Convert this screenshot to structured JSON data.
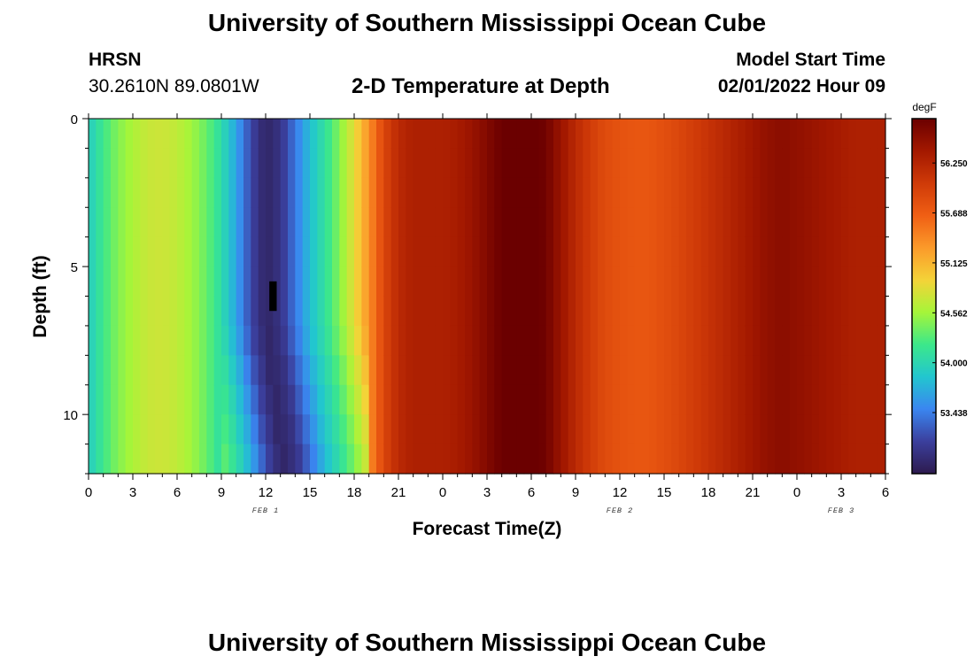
{
  "page": {
    "title": "University of Southern Mississippi Ocean Cube",
    "footer_title": "University of Southern Mississippi Ocean Cube",
    "station": "HRSN",
    "coords": "30.2610N  89.0801W",
    "model_label": "Model Start Time",
    "model_time": "02/01/2022 Hour 09"
  },
  "chart_data": {
    "type": "heatmap",
    "title": "2-D Temperature at Depth",
    "xlabel": "Forecast Time(Z)",
    "ylabel": "Depth (ft)",
    "x_range_hours": [
      0,
      54
    ],
    "x_tick_labels": [
      "0",
      "3",
      "6",
      "9",
      "12",
      "15",
      "18",
      "21",
      "0",
      "3",
      "6",
      "9",
      "12",
      "15",
      "18",
      "21",
      "0",
      "3",
      "6"
    ],
    "day_labels": [
      {
        "label": "FEB 1",
        "hour": 12
      },
      {
        "label": "FEB 2",
        "hour": 36
      },
      {
        "label": "FEB 3",
        "hour": 51
      }
    ],
    "y_range": [
      0,
      12
    ],
    "y_tick_labels": [
      {
        "value": 0,
        "label": "0"
      },
      {
        "value": 5,
        "label": "5"
      },
      {
        "value": 10,
        "label": "10"
      }
    ],
    "colorbar": {
      "unit": "degF",
      "min": 52.75,
      "max": 56.75,
      "ticks": [
        "53.438",
        "54.000",
        "54.562",
        "55.125",
        "55.688",
        "56.250"
      ],
      "colors": [
        "#2d1b4e",
        "#3b3f9d",
        "#3a86f0",
        "#22c6cf",
        "#3ce88a",
        "#a6f539",
        "#f4d338",
        "#fb9a2a",
        "#f05f14",
        "#cf3a08",
        "#a31800",
        "#6b0000"
      ]
    },
    "surface_temperature_by_hour": [
      {
        "hour": 0,
        "value": 53.9
      },
      {
        "hour": 1,
        "value": 54.2
      },
      {
        "hour": 2,
        "value": 54.45
      },
      {
        "hour": 3,
        "value": 54.6
      },
      {
        "hour": 4,
        "value": 54.72
      },
      {
        "hour": 5,
        "value": 54.75
      },
      {
        "hour": 6,
        "value": 54.68
      },
      {
        "hour": 7,
        "value": 54.55
      },
      {
        "hour": 8,
        "value": 54.35
      },
      {
        "hour": 9,
        "value": 54.05
      },
      {
        "hour": 10,
        "value": 53.65
      },
      {
        "hour": 11,
        "value": 53.15
      },
      {
        "hour": 12,
        "value": 52.85
      },
      {
        "hour": 13,
        "value": 53.0
      },
      {
        "hour": 14,
        "value": 53.4
      },
      {
        "hour": 15,
        "value": 53.8
      },
      {
        "hour": 16,
        "value": 54.1
      },
      {
        "hour": 17,
        "value": 54.45
      },
      {
        "hour": 18,
        "value": 54.85
      },
      {
        "hour": 19,
        "value": 55.35
      },
      {
        "hour": 20,
        "value": 55.9
      },
      {
        "hour": 21,
        "value": 56.2
      },
      {
        "hour": 22,
        "value": 56.3
      },
      {
        "hour": 23,
        "value": 56.3
      },
      {
        "hour": 24,
        "value": 56.3
      },
      {
        "hour": 25,
        "value": 56.35
      },
      {
        "hour": 26,
        "value": 56.45
      },
      {
        "hour": 27,
        "value": 56.6
      },
      {
        "hour": 28,
        "value": 56.75
      },
      {
        "hour": 29,
        "value": 56.82
      },
      {
        "hour": 30,
        "value": 56.82
      },
      {
        "hour": 31,
        "value": 56.7
      },
      {
        "hour": 32,
        "value": 56.45
      },
      {
        "hour": 33,
        "value": 56.2
      },
      {
        "hour": 34,
        "value": 56.0
      },
      {
        "hour": 35,
        "value": 55.85
      },
      {
        "hour": 36,
        "value": 55.78
      },
      {
        "hour": 37,
        "value": 55.75
      },
      {
        "hour": 38,
        "value": 55.75
      },
      {
        "hour": 39,
        "value": 55.82
      },
      {
        "hour": 40,
        "value": 55.9
      },
      {
        "hour": 41,
        "value": 56.0
      },
      {
        "hour": 42,
        "value": 56.1
      },
      {
        "hour": 43,
        "value": 56.2
      },
      {
        "hour": 44,
        "value": 56.3
      },
      {
        "hour": 45,
        "value": 56.4
      },
      {
        "hour": 46,
        "value": 56.5
      },
      {
        "hour": 47,
        "value": 56.55
      },
      {
        "hour": 48,
        "value": 56.5
      },
      {
        "hour": 49,
        "value": 56.45
      },
      {
        "hour": 50,
        "value": 56.4
      },
      {
        "hour": 51,
        "value": 56.35
      },
      {
        "hour": 52,
        "value": 56.3
      },
      {
        "hour": 53,
        "value": 56.3
      },
      {
        "hour": 54,
        "value": 56.3
      }
    ],
    "cold_core_hour_by_depth": [
      {
        "depth": 0,
        "hour": 12.3
      },
      {
        "depth": 7,
        "hour": 12.3
      },
      {
        "depth": 12,
        "hour": 13.5
      }
    ]
  }
}
